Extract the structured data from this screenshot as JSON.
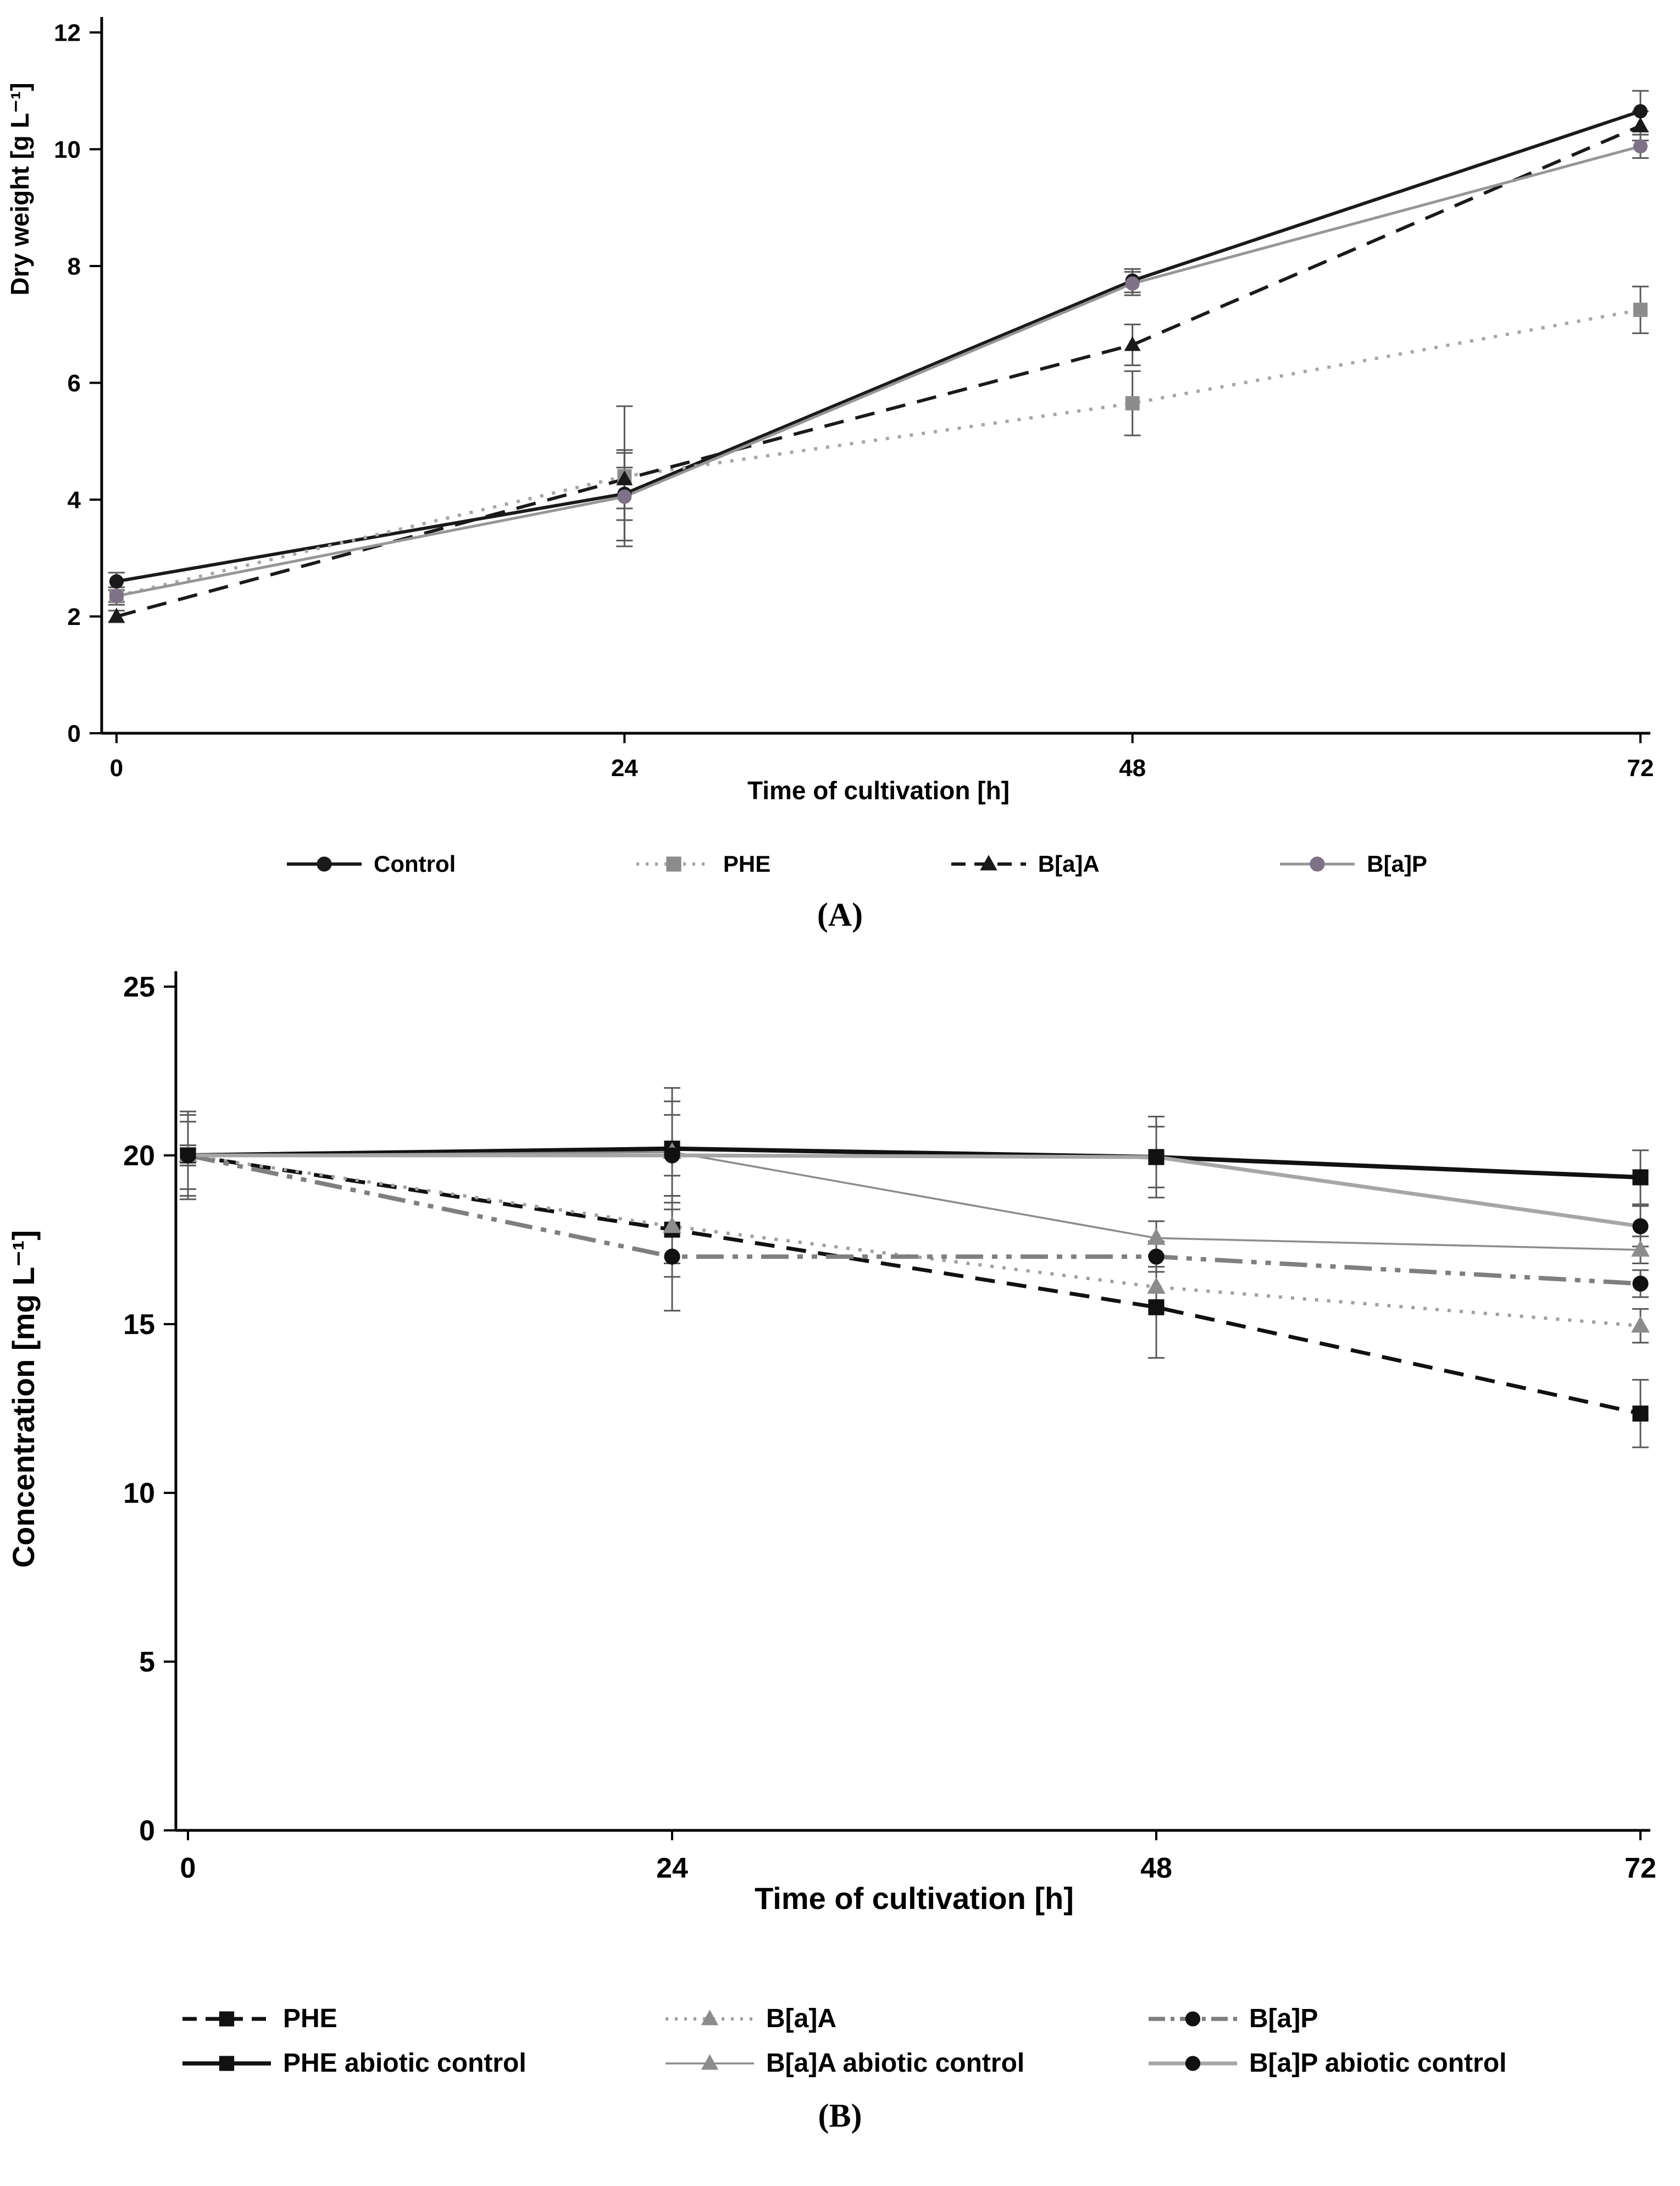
{
  "page": {
    "background": "#ffffff"
  },
  "chart_data": [
    {
      "panel": "A",
      "panel_label": "(A)",
      "type": "line",
      "title": "",
      "xlabel": "Time of cultivation [h]",
      "ylabel": "Dry weight [g L⁻¹]",
      "x": [
        0,
        24,
        48,
        72
      ],
      "xticks": [
        0,
        24,
        48,
        72
      ],
      "ylim": [
        0,
        12
      ],
      "yticks": [
        0,
        2,
        4,
        6,
        8,
        10,
        12
      ],
      "grid": false,
      "legend_position": "bottom",
      "error_bar_color": "#595959",
      "series": [
        {
          "name": "Control",
          "color": "#1a1a1a",
          "dash": "solid",
          "line_width": 6,
          "marker": "circle",
          "marker_color": "#1a1a1a",
          "values": [
            2.6,
            4.1,
            7.75,
            10.65
          ],
          "errors": [
            0.15,
            0.45,
            0.2,
            0.35
          ]
        },
        {
          "name": "PHE",
          "color": "#a6a6a6",
          "dash": "dotted",
          "line_width": 6,
          "marker": "square",
          "marker_color": "#8c8c8c",
          "values": [
            2.35,
            4.4,
            5.65,
            7.25
          ],
          "errors": [
            0.15,
            1.2,
            0.55,
            0.4
          ]
        },
        {
          "name": "B[a]A",
          "color": "#1a1a1a",
          "dash": "dashed",
          "line_width": 6,
          "marker": "triangle",
          "marker_color": "#1a1a1a",
          "values": [
            2.0,
            4.35,
            6.65,
            10.4
          ],
          "errors": [
            0.1,
            0.5,
            0.35,
            0.25
          ]
        },
        {
          "name": "B[a]P",
          "color": "#969696",
          "dash": "solid",
          "line_width": 5,
          "marker": "circle",
          "marker_color": "#7d7287",
          "values": [
            2.35,
            4.05,
            7.7,
            10.05
          ],
          "errors": [
            0.1,
            0.75,
            0.2,
            0.2
          ]
        }
      ]
    },
    {
      "panel": "B",
      "panel_label": "(B)",
      "type": "line",
      "title": "",
      "xlabel": "Time of cultivation [h]",
      "ylabel": "Concentration [mg L⁻¹]",
      "x": [
        0,
        24,
        48,
        72
      ],
      "xticks": [
        0,
        24,
        48,
        72
      ],
      "ylim": [
        0,
        25
      ],
      "yticks": [
        0,
        5,
        10,
        15,
        20,
        25
      ],
      "grid": false,
      "legend_position": "bottom",
      "error_bar_color": "#595959",
      "series": [
        {
          "name": "PHE",
          "color": "#111111",
          "dash": "dashed",
          "line_width": 7,
          "marker": "square",
          "marker_color": "#111111",
          "values": [
            20,
            17.8,
            15.5,
            12.35
          ],
          "errors": [
            0.2,
            1.0,
            1.5,
            1.0
          ]
        },
        {
          "name": "B[a]A",
          "color": "#a0a0a0",
          "dash": "dotted",
          "line_width": 6,
          "marker": "triangle",
          "marker_color": "#8c8c8c",
          "values": [
            20,
            17.9,
            16.1,
            14.95
          ],
          "errors": [
            0.3,
            1.5,
            0.6,
            0.5
          ]
        },
        {
          "name": "B[a]P",
          "color": "#7f7f7f",
          "dash": "dashdot",
          "line_width": 8,
          "marker": "circle",
          "marker_color": "#111111",
          "values": [
            20,
            17.0,
            17.0,
            16.2
          ],
          "errors": [
            0.3,
            1.6,
            0.45,
            0.4
          ]
        },
        {
          "name": "PHE abiotic control",
          "color": "#111111",
          "dash": "solid",
          "line_width": 8,
          "marker": "square",
          "marker_color": "#111111",
          "values": [
            20,
            20.2,
            19.95,
            19.35
          ],
          "errors": [
            1.3,
            1.8,
            1.2,
            0.8
          ]
        },
        {
          "name": "B[a]A abiotic control",
          "color": "#8c8c8c",
          "dash": "solid",
          "line_width": 3.5,
          "marker": "triangle",
          "marker_color": "#8c8c8c",
          "values": [
            20,
            20.1,
            17.55,
            17.2
          ],
          "errors": [
            1.0,
            1.5,
            0.5,
            0.4
          ]
        },
        {
          "name": "B[a]P abiotic control",
          "color": "#a6a6a6",
          "dash": "solid",
          "line_width": 7,
          "marker": "circle",
          "marker_color": "#111111",
          "values": [
            20,
            20.0,
            19.95,
            17.9
          ],
          "errors": [
            1.2,
            1.2,
            0.9,
            0.6
          ]
        }
      ]
    }
  ]
}
